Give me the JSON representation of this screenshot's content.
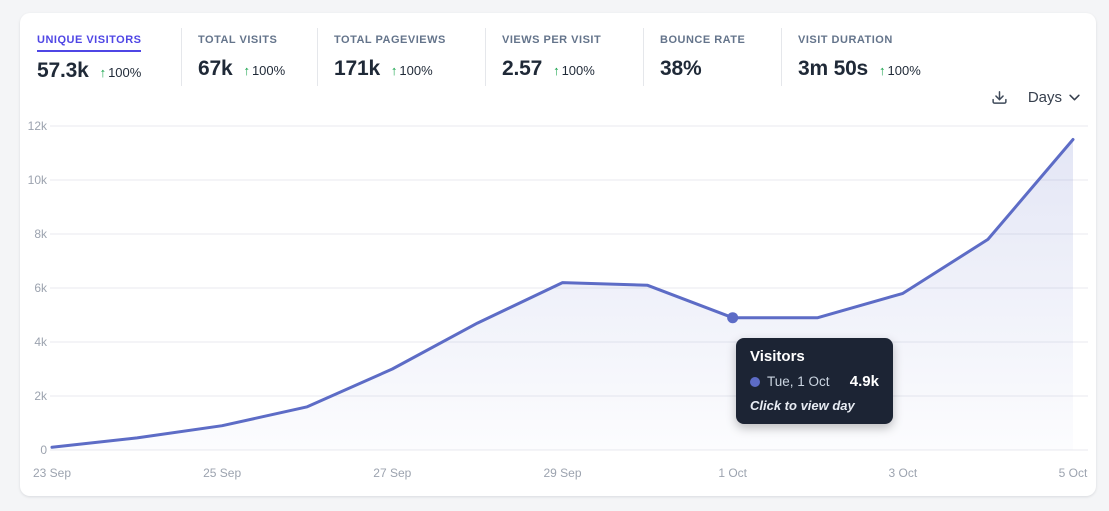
{
  "stats": {
    "items": [
      {
        "label": "UNIQUE VISITORS",
        "value": "57.3k",
        "arrow": "↑",
        "delta": "100%",
        "active": true
      },
      {
        "label": "TOTAL VISITS",
        "value": "67k",
        "arrow": "↑",
        "delta": "100%"
      },
      {
        "label": "TOTAL PAGEVIEWS",
        "value": "171k",
        "arrow": "↑",
        "delta": "100%"
      },
      {
        "label": "VIEWS PER VISIT",
        "value": "2.57",
        "arrow": "↑",
        "delta": "100%"
      },
      {
        "label": "BOUNCE RATE",
        "value": "38%"
      },
      {
        "label": "VISIT DURATION",
        "value": "3m 50s",
        "arrow": "↑",
        "delta": "100%"
      }
    ]
  },
  "controls": {
    "interval": "Days",
    "download_icon": "download-icon",
    "chevron_icon": "chevron-down-icon"
  },
  "tooltip": {
    "title": "Visitors",
    "date": "Tue, 1 Oct",
    "value": "4.9k",
    "hint": "Click to view day"
  },
  "colors": {
    "accent": "#4f46e5",
    "line": "#5d6cc6",
    "positive": "#16a34a",
    "grid": "#e9eaef",
    "tooltip_bg": "#1c2434"
  },
  "chart_data": {
    "type": "area",
    "title": "Visitors",
    "x": [
      "23 Sep",
      "24 Sep",
      "25 Sep",
      "26 Sep",
      "27 Sep",
      "28 Sep",
      "29 Sep",
      "30 Sep",
      "1 Oct",
      "2 Oct",
      "3 Oct",
      "4 Oct",
      "5 Oct"
    ],
    "x_tick_labels": [
      "23 Sep",
      "25 Sep",
      "27 Sep",
      "29 Sep",
      "1 Oct",
      "3 Oct",
      "5 Oct"
    ],
    "series": [
      {
        "name": "Visitors",
        "values": [
          100,
          450,
          900,
          1600,
          3000,
          4700,
          6200,
          6100,
          4900,
          4900,
          5800,
          7800,
          11500
        ]
      }
    ],
    "ylim": [
      0,
      12000
    ],
    "y_ticks": [
      0,
      2000,
      4000,
      6000,
      8000,
      10000,
      12000
    ],
    "y_tick_labels": [
      "0",
      "2k",
      "4k",
      "6k",
      "8k",
      "10k",
      "12k"
    ],
    "grid": true,
    "legend": false,
    "highlight_index": 8,
    "line_color": "#5d6cc6"
  }
}
